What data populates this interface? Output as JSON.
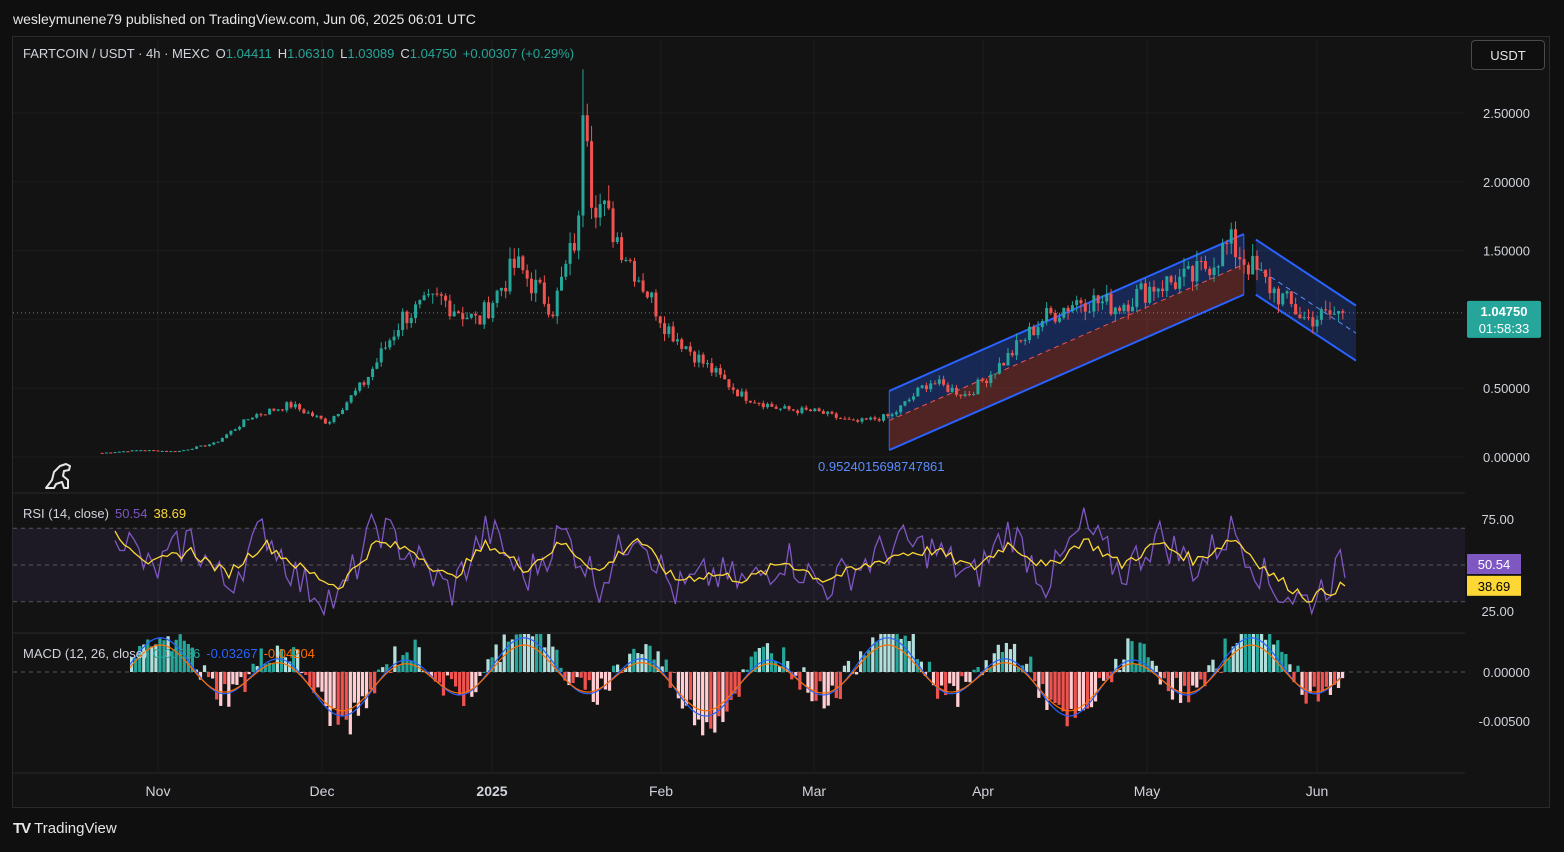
{
  "header": {
    "publisher": "wesleymunene79 published on TradingView.com, Jun 06, 2025 06:01 UTC"
  },
  "symbol": {
    "name": "FARTCOIN / USDT · 4h · MEXC",
    "open_label": "O",
    "open": "1.04411",
    "high_label": "H",
    "high": "1.06310",
    "low_label": "L",
    "low": "1.03089",
    "close_label": "C",
    "close": "1.04750",
    "change": "+0.00307 (+0.29%)"
  },
  "currency_button": "USDT",
  "price_tag": {
    "price": "1.04750",
    "countdown": "01:58:33"
  },
  "annotation": "0.9524015698747861",
  "rsi": {
    "label": "RSI (14, close)",
    "value": "50.54",
    "ma": "38.69"
  },
  "macd": {
    "label": "MACD (12, 26, close)",
    "hist": "0.00936",
    "macd": "-0.03267",
    "signal": "-0.04204"
  },
  "footer": {
    "brand": "TradingView"
  },
  "colors": {
    "up": "#26a69a",
    "down": "#ef5350",
    "rsi_line": "#7e57c2",
    "rsi_ma": "#fdd835",
    "macd_line": "#2962ff",
    "signal_line": "#ff6d00",
    "channel": "#2962ff"
  },
  "chart_data": [
    {
      "type": "candlestick",
      "ylim": [
        0,
        2.7
      ],
      "yticks": [
        "2.50000",
        "2.00000",
        "1.50000",
        "1.00000",
        "0.50000",
        "0.00000"
      ],
      "xticks": [
        "Nov",
        "Dec",
        "2025",
        "Feb",
        "Mar",
        "Apr",
        "May",
        "Jun"
      ],
      "x": [
        "Oct 20",
        "Oct 27",
        "Nov 03",
        "Nov 10",
        "Nov 17",
        "Nov 24",
        "Dec 01",
        "Dec 08",
        "Dec 15",
        "Dec 22",
        "Dec 29",
        "Jan 05",
        "Jan 12",
        "Jan 19",
        "Jan 26",
        "Feb 02",
        "Feb 09",
        "Feb 16",
        "Feb 23",
        "Mar 02",
        "Mar 09",
        "Mar 16",
        "Mar 23",
        "Mar 30",
        "Apr 06",
        "Apr 13",
        "Apr 20",
        "Apr 27",
        "May 04",
        "May 11",
        "May 18",
        "May 25",
        "Jun 01",
        "Jun 06"
      ],
      "close": [
        0.03,
        0.05,
        0.04,
        0.1,
        0.3,
        0.38,
        0.25,
        0.55,
        1.02,
        1.15,
        0.98,
        1.4,
        1.08,
        1.95,
        1.45,
        0.95,
        0.68,
        0.45,
        0.35,
        0.33,
        0.25,
        0.3,
        0.55,
        0.45,
        0.7,
        1.0,
        1.15,
        1.1,
        1.25,
        1.3,
        1.55,
        1.25,
        1.0,
        1.0475
      ],
      "peak": 2.7,
      "ascending_channel": {
        "from": "Mar 15",
        "to": "May 21",
        "upper": [
          0.48,
          1.62
        ],
        "lower": [
          0.05,
          1.18
        ]
      },
      "descending_channel": {
        "from": "May 21",
        "to": "Jun 06",
        "upper": [
          1.58,
          1.1
        ],
        "lower": [
          1.18,
          0.7
        ]
      }
    },
    {
      "type": "line",
      "title": "RSI (14, close)",
      "ylim": [
        15,
        85
      ],
      "yticks": [
        "75.00",
        "25.00"
      ],
      "bands": [
        30,
        50,
        70
      ],
      "series": [
        {
          "name": "RSI",
          "values": [
            72,
            45,
            65,
            38,
            70,
            40,
            30,
            72,
            55,
            35,
            70,
            42,
            68,
            40,
            72,
            35,
            45,
            40,
            55,
            38,
            50,
            62,
            58,
            42,
            70,
            40,
            72,
            45,
            66,
            48,
            70,
            38,
            30,
            50.54
          ]
        },
        {
          "name": "RSI MA",
          "values": [
            68,
            50,
            58,
            45,
            62,
            48,
            38,
            62,
            58,
            42,
            62,
            48,
            62,
            46,
            65,
            42,
            45,
            42,
            52,
            42,
            48,
            56,
            58,
            48,
            62,
            48,
            64,
            50,
            62,
            52,
            65,
            45,
            32,
            38.69
          ]
        }
      ]
    },
    {
      "type": "bar",
      "title": "MACD (12, 26, close)",
      "ylim": [
        -0.0075,
        0.003
      ],
      "yticks": [
        "0.00000",
        "-0.00500"
      ]
    }
  ]
}
